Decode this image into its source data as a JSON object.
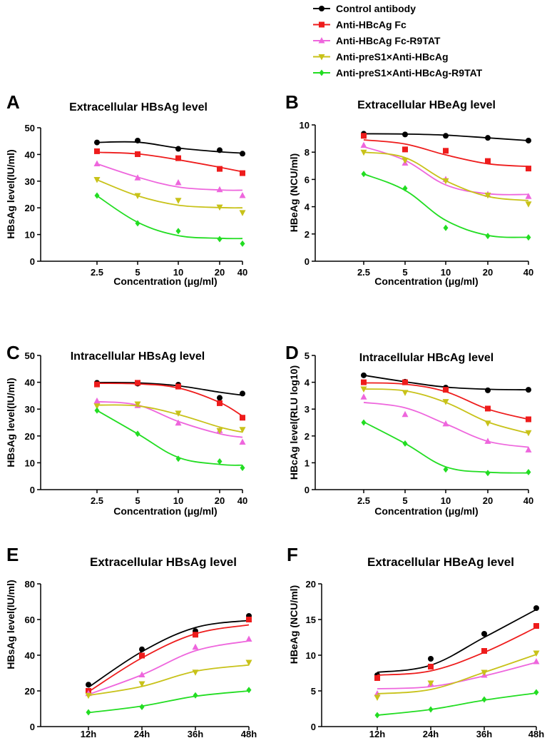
{
  "figure": {
    "width": 767,
    "height": 1041
  },
  "legend": {
    "entries": [
      {
        "label": "Control antibody",
        "color": "#000000",
        "marker": "circle"
      },
      {
        "label": "Anti-HBcAg Fc",
        "color": "#ee1c1c",
        "marker": "square"
      },
      {
        "label": "Anti-HBcAg Fc-R9TAT",
        "color": "#ee66dd",
        "marker": "triangle-up"
      },
      {
        "label": "Anti-preS1×Anti-HBcAg",
        "color": "#c8c219",
        "marker": "triangle-down"
      },
      {
        "label": "Anti-preS1×Anti-HBcAg-R9TAT",
        "color": "#22dd22",
        "marker": "diamond"
      }
    ]
  },
  "chart_data": [
    {
      "panel": "A",
      "type": "line",
      "title": "Extracellular HBsAg level",
      "xlabel": "Concentration (μg/ml)",
      "ylabel": "HBsAg level(IU/ml)",
      "categories": [
        "2.5",
        "5",
        "10",
        "20",
        "40"
      ],
      "ylim": [
        0,
        50
      ],
      "yticks": [
        0,
        10,
        20,
        30,
        40,
        50
      ],
      "series": [
        {
          "name": "Control antibody",
          "values": [
            44.5,
            45.2,
            42.1,
            41.6,
            40.3
          ],
          "fit": [
            44.5,
            44.6,
            42.4,
            41.0,
            40.5
          ]
        },
        {
          "name": "Anti-HBcAg Fc",
          "values": [
            41.2,
            40.1,
            38.6,
            34.6,
            33.0
          ],
          "fit": [
            40.8,
            40.2,
            38.0,
            35.2,
            33.5
          ]
        },
        {
          "name": "Anti-HBcAg Fc-R9TAT",
          "values": [
            36.5,
            31.2,
            29.4,
            26.8,
            24.6
          ],
          "fit": [
            36.5,
            31.5,
            27.8,
            26.7,
            26.6
          ]
        },
        {
          "name": "Anti-preS1×Anti-HBcAg",
          "values": [
            30.6,
            24.6,
            22.8,
            20.3,
            18.2
          ],
          "fit": [
            30.5,
            24.5,
            21.0,
            20.1,
            20.0
          ]
        },
        {
          "name": "Anti-preS1×Anti-HBcAg-R9TAT",
          "values": [
            24.6,
            14.2,
            11.3,
            8.3,
            6.6
          ],
          "fit": [
            24.5,
            14.6,
            9.6,
            8.6,
            8.5
          ]
        }
      ]
    },
    {
      "panel": "B",
      "type": "line",
      "title": "Extracellular HBeAg level",
      "xlabel": "Concentration (μg/ml)",
      "ylabel": "HBeAg (NCU/ml)",
      "categories": [
        "2.5",
        "5",
        "10",
        "20",
        "40"
      ],
      "ylim": [
        0,
        10
      ],
      "yticks": [
        0,
        2,
        4,
        6,
        8,
        10
      ],
      "series": [
        {
          "name": "Control antibody",
          "values": [
            9.35,
            9.3,
            9.2,
            9.05,
            8.85
          ],
          "fit": [
            9.35,
            9.33,
            9.25,
            9.05,
            8.85
          ]
        },
        {
          "name": "Anti-HBcAg Fc",
          "values": [
            9.2,
            8.2,
            8.1,
            7.35,
            6.8
          ],
          "fit": [
            8.9,
            8.6,
            7.8,
            7.15,
            6.95
          ]
        },
        {
          "name": "Anti-HBcAg Fc-R9TAT",
          "values": [
            8.5,
            7.2,
            6.0,
            4.9,
            4.75
          ],
          "fit": [
            8.4,
            7.4,
            5.6,
            4.95,
            4.9
          ]
        },
        {
          "name": "Anti-preS1×Anti-HBcAg",
          "values": [
            8.0,
            7.4,
            5.9,
            4.85,
            4.2
          ],
          "fit": [
            8.0,
            7.6,
            5.9,
            4.75,
            4.45
          ]
        },
        {
          "name": "Anti-preS1×Anti-HBcAg-R9TAT",
          "values": [
            6.4,
            5.35,
            2.45,
            1.85,
            1.75
          ],
          "fit": [
            6.4,
            5.2,
            3.0,
            1.9,
            1.75
          ]
        }
      ]
    },
    {
      "panel": "C",
      "type": "line",
      "title": "Intracellular HBsAg level",
      "xlabel": "Concentration (μg/ml)",
      "ylabel": "HBsAg level(IU/ml)",
      "categories": [
        "2.5",
        "5",
        "10",
        "20",
        "40"
      ],
      "ylim": [
        0,
        50
      ],
      "yticks": [
        0,
        10,
        20,
        30,
        40,
        50
      ],
      "series": [
        {
          "name": "Control antibody",
          "values": [
            39.8,
            39.5,
            39.1,
            34.2,
            35.8
          ],
          "fit": [
            39.9,
            39.8,
            38.7,
            36.3,
            35.2
          ]
        },
        {
          "name": "Anti-HBcAg Fc",
          "values": [
            39.2,
            39.8,
            38.4,
            32.2,
            26.8
          ],
          "fit": [
            39.6,
            39.4,
            37.9,
            32.5,
            27.4
          ]
        },
        {
          "name": "Anti-HBcAg Fc-R9TAT",
          "values": [
            33.0,
            31.3,
            24.8,
            22.0,
            17.7
          ],
          "fit": [
            32.8,
            31.5,
            25.4,
            20.8,
            19.5
          ]
        },
        {
          "name": "Anti-preS1×Anti-HBcAg",
          "values": [
            31.2,
            31.9,
            28.5,
            22.0,
            22.4
          ],
          "fit": [
            31.5,
            31.2,
            28.0,
            23.3,
            21.4
          ]
        },
        {
          "name": "Anti-preS1×Anti-HBcAg-R9TAT",
          "values": [
            29.5,
            20.8,
            11.5,
            10.5,
            8.1
          ],
          "fit": [
            29.5,
            20.8,
            12.0,
            9.4,
            9.1
          ]
        }
      ]
    },
    {
      "panel": "D",
      "type": "line",
      "title": "Intracellular HBcAg level",
      "xlabel": "Concentration (μg/ml)",
      "ylabel": "HBcAg level(RLU log10)",
      "categories": [
        "2.5",
        "5",
        "10",
        "20",
        "40"
      ],
      "ylim": [
        0,
        5
      ],
      "yticks": [
        0,
        1,
        2,
        3,
        4,
        5
      ],
      "series": [
        {
          "name": "Control antibody",
          "values": [
            4.26,
            4.02,
            3.8,
            3.7,
            3.72
          ],
          "fit": [
            4.26,
            4.02,
            3.82,
            3.74,
            3.72
          ]
        },
        {
          "name": "Anti-HBcAg Fc",
          "values": [
            4.0,
            4.0,
            3.72,
            3.02,
            2.62
          ],
          "fit": [
            3.98,
            3.93,
            3.65,
            3.0,
            2.62
          ]
        },
        {
          "name": "Anti-HBcAg Fc-R9TAT",
          "values": [
            3.45,
            2.8,
            2.45,
            1.8,
            1.48
          ],
          "fit": [
            3.25,
            3.05,
            2.45,
            1.8,
            1.58
          ]
        },
        {
          "name": "Anti-preS1×Anti-HBcAg",
          "values": [
            3.75,
            3.62,
            3.28,
            2.48,
            2.12
          ],
          "fit": [
            3.75,
            3.68,
            3.25,
            2.52,
            2.1
          ]
        },
        {
          "name": "Anti-preS1×Anti-HBcAg-R9TAT",
          "values": [
            2.5,
            1.72,
            0.75,
            0.62,
            0.65
          ],
          "fit": [
            2.52,
            1.72,
            0.85,
            0.65,
            0.62
          ]
        }
      ]
    },
    {
      "panel": "E",
      "type": "line",
      "title": "Extracellular HBsAg level",
      "xlabel": "",
      "ylabel": "HBsAg level(IU/ml)",
      "categories": [
        "12h",
        "24h",
        "36h",
        "48h"
      ],
      "ylim": [
        0,
        80
      ],
      "yticks": [
        0,
        20,
        40,
        60,
        80
      ],
      "series": [
        {
          "name": "Control antibody",
          "values": [
            23.5,
            43.3,
            53.5,
            62.0
          ],
          "fit": [
            22.0,
            42.0,
            55.5,
            59.5
          ]
        },
        {
          "name": "Anti-HBcAg Fc",
          "values": [
            20.0,
            39.8,
            51.5,
            60.0
          ],
          "fit": [
            19.5,
            38.5,
            52.0,
            57.0
          ]
        },
        {
          "name": "Anti-HBcAg Fc-R9TAT",
          "values": [
            18.5,
            29.0,
            44.5,
            49.0
          ],
          "fit": [
            18.0,
            29.0,
            42.5,
            48.0
          ]
        },
        {
          "name": "Anti-preS1×Anti-HBcAg",
          "values": [
            17.5,
            24.0,
            30.5,
            36.0
          ],
          "fit": [
            17.5,
            22.5,
            31.0,
            34.5
          ]
        },
        {
          "name": "Anti-preS1×Anti-HBcAg-R9TAT",
          "values": [
            8.0,
            11.0,
            17.5,
            20.5
          ],
          "fit": [
            7.8,
            11.5,
            17.0,
            20.0
          ]
        }
      ]
    },
    {
      "panel": "F",
      "type": "line",
      "title": "Extracellular HBeAg level",
      "xlabel": "",
      "ylabel": "HBeAg (NCU/ml)",
      "categories": [
        "12h",
        "24h",
        "36h",
        "48h"
      ],
      "ylim": [
        0,
        20
      ],
      "yticks": [
        0,
        5,
        10,
        15,
        20
      ],
      "series": [
        {
          "name": "Control antibody",
          "values": [
            7.2,
            9.5,
            13.0,
            16.6
          ],
          "fit": [
            7.6,
            8.6,
            12.5,
            16.4
          ]
        },
        {
          "name": "Anti-HBcAg Fc",
          "values": [
            6.8,
            8.4,
            10.6,
            14.1
          ],
          "fit": [
            7.2,
            7.8,
            10.4,
            13.9
          ]
        },
        {
          "name": "Anti-HBcAg Fc-R9TAT",
          "values": [
            4.6,
            6.0,
            7.2,
            9.1
          ],
          "fit": [
            5.3,
            5.6,
            7.1,
            9.0
          ]
        },
        {
          "name": "Anti-preS1×Anti-HBcAg",
          "values": [
            4.1,
            6.1,
            7.6,
            10.3
          ],
          "fit": [
            4.6,
            5.2,
            7.6,
            10.1
          ]
        },
        {
          "name": "Anti-preS1×Anti-HBcAg-R9TAT",
          "values": [
            1.6,
            2.4,
            3.8,
            4.8
          ],
          "fit": [
            1.6,
            2.4,
            3.7,
            4.7
          ]
        }
      ]
    }
  ]
}
